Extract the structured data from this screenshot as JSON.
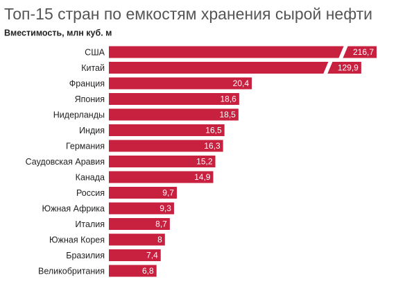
{
  "chart_data": {
    "type": "bar",
    "orientation": "horizontal",
    "title": "Топ-15 стран по емкостям хранения сырой нефти",
    "subtitle": "Вместимость, млн куб. м",
    "color": "#c8203f",
    "categories": [
      "США",
      "Китай",
      "Франция",
      "Япония",
      "Нидерланды",
      "Индия",
      "Германия",
      "Саудовская Аравия",
      "Канада",
      "Россия",
      "Южная Африка",
      "Италия",
      "Южная Корея",
      "Бразилия",
      "Великобритания"
    ],
    "values": [
      216.7,
      129.9,
      20.4,
      18.6,
      18.5,
      16.5,
      16.3,
      15.2,
      14.9,
      9.7,
      9.3,
      8.7,
      8,
      7.4,
      6.8
    ],
    "value_labels": [
      "216,7",
      "129,9",
      "20,4",
      "18,6",
      "18,5",
      "16,5",
      "16,3",
      "15,2",
      "14,9",
      "9,7",
      "9,3",
      "8,7",
      "8",
      "7,4",
      "6,8"
    ]
  }
}
